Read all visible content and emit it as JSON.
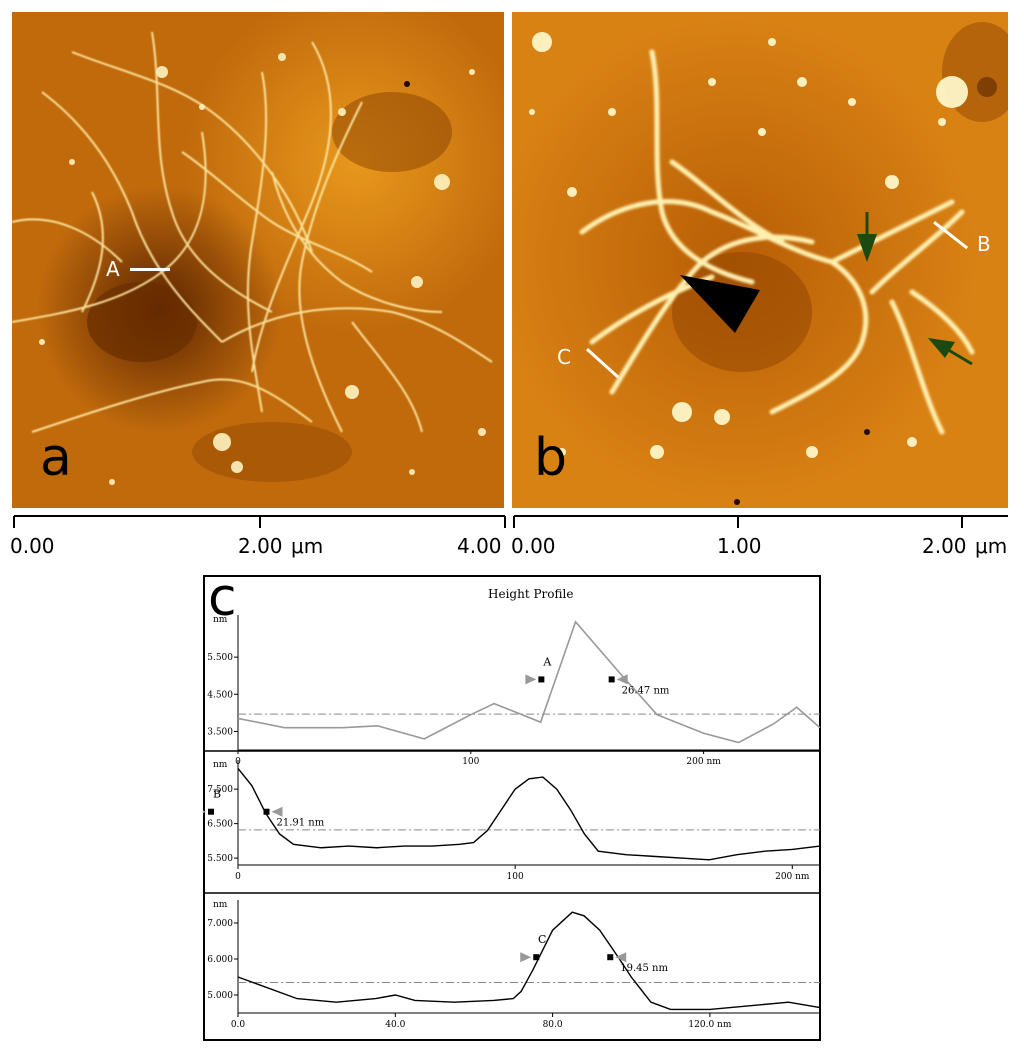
{
  "panels": {
    "a": {
      "letter": "a",
      "marker_label": "A"
    },
    "b": {
      "letter": "b",
      "marker_labels": [
        "B",
        "C"
      ]
    },
    "c": {
      "letter": "c",
      "title": "Height Profile"
    }
  },
  "scalebar_a": {
    "ticks": [
      "0.00",
      "2.00",
      "4.00"
    ],
    "unit": "μm"
  },
  "scalebar_b": {
    "ticks": [
      "0.00",
      "1.00",
      "2.00"
    ],
    "unit": "μm"
  },
  "colors": {
    "afm_dark": "#6a2e00",
    "afm_mid": "#c8700a",
    "afm_light": "#fff0b0",
    "profile_A": "#999999",
    "profile_B": "#000000",
    "profile_C": "#000000",
    "arrow_black": "#000000",
    "arrow_green": "#1a4a10"
  },
  "chart_data": [
    {
      "type": "line",
      "title": "Height Profile",
      "ylabel": "nm",
      "xlabel": "nm",
      "yticks": [
        "3.500",
        "4.500",
        "5.500"
      ],
      "xticks": [
        "0",
        "100",
        "200 nm"
      ],
      "xlim": [
        0,
        250
      ],
      "ylim": [
        3.0,
        6.5
      ],
      "marker": "A",
      "annotation": "26.47 nm",
      "series": [
        {
          "x": [
            0,
            20,
            45,
            60,
            80,
            100,
            110,
            130,
            145,
            165,
            180,
            200,
            215,
            230,
            240,
            250
          ],
          "y": [
            3.85,
            3.6,
            3.6,
            3.65,
            3.3,
            3.95,
            4.25,
            3.75,
            6.45,
            5.0,
            3.95,
            3.45,
            3.2,
            3.7,
            4.15,
            3.6
          ]
        }
      ]
    },
    {
      "type": "line",
      "ylabel": "nm",
      "xlabel": "nm",
      "yticks": [
        "5.500",
        "6.500",
        "7.500"
      ],
      "xticks": [
        "0",
        "100",
        "200 nm"
      ],
      "xlim": [
        0,
        210
      ],
      "ylim": [
        5.3,
        8.2
      ],
      "marker": "B",
      "annotation": "21.91 nm",
      "series": [
        {
          "x": [
            0,
            5,
            10,
            15,
            20,
            30,
            40,
            50,
            60,
            70,
            80,
            85,
            90,
            95,
            100,
            105,
            110,
            115,
            120,
            125,
            130,
            140,
            150,
            160,
            170,
            180,
            190,
            200,
            210
          ],
          "y": [
            8.1,
            7.6,
            6.8,
            6.2,
            5.9,
            5.8,
            5.85,
            5.8,
            5.85,
            5.85,
            5.9,
            5.95,
            6.3,
            6.9,
            7.5,
            7.8,
            7.85,
            7.5,
            6.9,
            6.2,
            5.7,
            5.6,
            5.55,
            5.5,
            5.45,
            5.6,
            5.7,
            5.75,
            5.85
          ]
        }
      ]
    },
    {
      "type": "line",
      "ylabel": "nm",
      "yticks": [
        "5.000",
        "6.000",
        "7.000"
      ],
      "xticks": [
        "0.0",
        "40.0",
        "80.0",
        "120.0 nm"
      ],
      "xlim": [
        0,
        148
      ],
      "ylim": [
        4.5,
        7.5
      ],
      "marker": "C",
      "annotation": "19.45 nm",
      "series": [
        {
          "x": [
            0,
            5,
            15,
            25,
            35,
            40,
            45,
            55,
            65,
            70,
            72,
            75,
            80,
            85,
            88,
            92,
            97,
            100,
            105,
            110,
            120,
            130,
            140,
            148
          ],
          "y": [
            5.5,
            5.3,
            4.9,
            4.8,
            4.9,
            5.0,
            4.85,
            4.8,
            4.85,
            4.9,
            5.1,
            5.7,
            6.8,
            7.3,
            7.2,
            6.8,
            6.0,
            5.5,
            4.8,
            4.6,
            4.6,
            4.7,
            4.8,
            4.65
          ]
        }
      ]
    }
  ]
}
